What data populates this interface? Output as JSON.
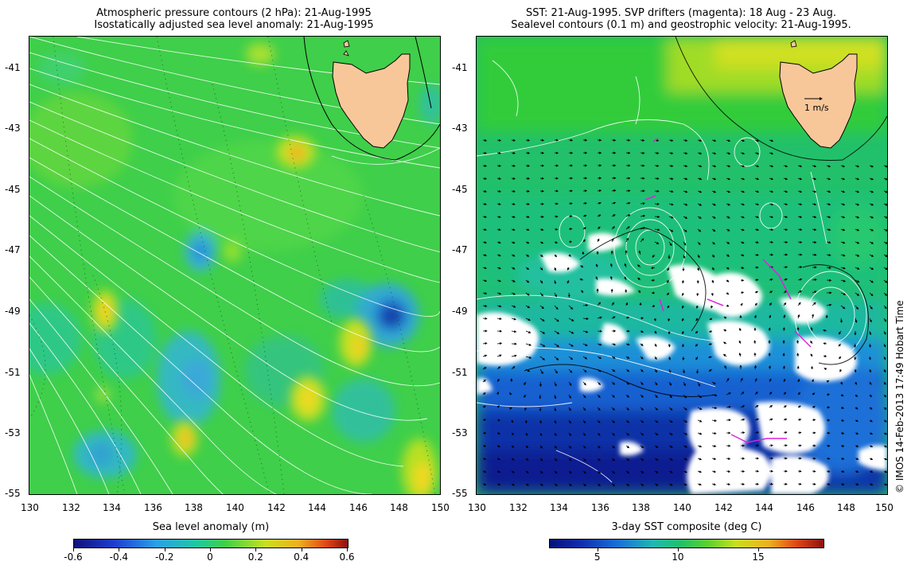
{
  "left_panel": {
    "title_line1": "Atmospheric pressure contours (2 hPa): 21-Aug-1995",
    "title_line2": "Isostatically adjusted sea level anomaly: 21-Aug-1995",
    "y_ticks": [
      "-41",
      "-43",
      "-45",
      "-47",
      "-49",
      "-51",
      "-53",
      "-55"
    ],
    "x_ticks": [
      "130",
      "132",
      "134",
      "136",
      "138",
      "140",
      "142",
      "144",
      "146",
      "148",
      "150"
    ],
    "colorbar_label": "Sea level anomaly (m)",
    "colorbar_ticks": [
      "-0.6",
      "-0.4",
      "-0.2",
      "0",
      "0.2",
      "0.4",
      "0.6"
    ],
    "colorbar_range": [
      -0.6,
      0.6
    ]
  },
  "right_panel": {
    "title_line1": "SST: 21-Aug-1995. SVP drifters (magenta): 18 Aug - 23 Aug.",
    "title_line2": "Sealevel contours (0.1 m) and geostrophic velocity: 21-Aug-1995.",
    "y_ticks": [
      "-41",
      "-43",
      "-45",
      "-47",
      "-49",
      "-51",
      "-53",
      "-55"
    ],
    "x_ticks": [
      "130",
      "132",
      "134",
      "136",
      "138",
      "140",
      "142",
      "144",
      "146",
      "148",
      "150"
    ],
    "velocity_key": "1 m/s",
    "colorbar_label": "3-day SST composite (deg C)",
    "colorbar_ticks": [
      "5",
      "10",
      "15"
    ],
    "colorbar_range": [
      2,
      19
    ]
  },
  "credit": "© IMOS 14-Feb-2013 17:49 Hobart Time",
  "colors": {
    "land": "#f7c79a",
    "ocean_green": "#33cc44",
    "cloud": "#ffffff",
    "drifter": "#dd22dd"
  }
}
